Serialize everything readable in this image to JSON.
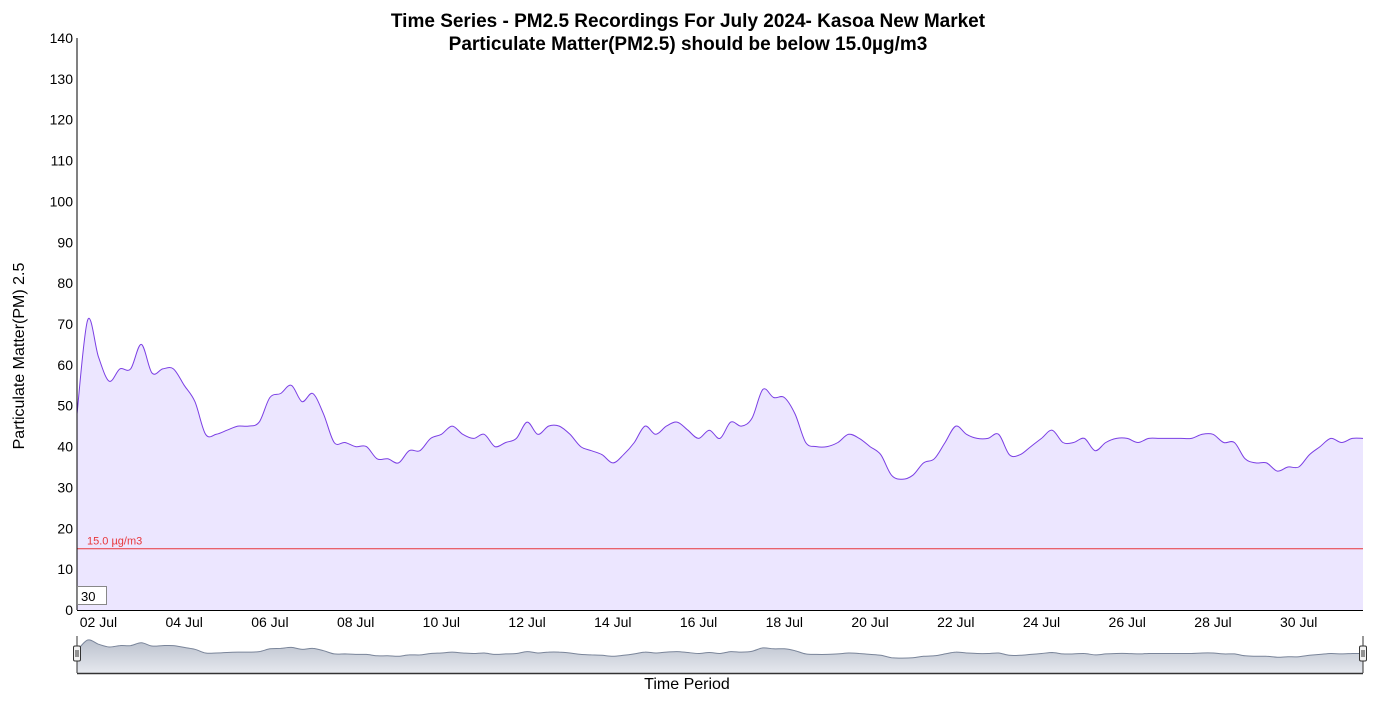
{
  "colors": {
    "line": "#7b3fe4",
    "fill": "#ece6ff",
    "threshold": "#e8363a",
    "subtitle": "#ff0000",
    "navigator_line": "#7a859a",
    "navigator_fill": "#b3bac8"
  },
  "roller": {
    "value": "30"
  },
  "chart_data": {
    "type": "area",
    "title": "Time Series - PM2.5 Recordings For July 2024- Kasoa New Market",
    "subtitle": "Particulate Matter(PM2.5) should be below 15.0µg/m3",
    "xlabel": "Time Period",
    "ylabel": "Particulate Matter(PM) 2.5",
    "ylim": [
      0,
      140
    ],
    "yticks": [
      0,
      10,
      20,
      30,
      40,
      50,
      60,
      70,
      80,
      90,
      100,
      110,
      120,
      130,
      140
    ],
    "xlim": [
      "2024-07-01T12:00",
      "2024-07-31T12:00"
    ],
    "xticks": [
      "02 Jul",
      "04 Jul",
      "06 Jul",
      "08 Jul",
      "10 Jul",
      "12 Jul",
      "14 Jul",
      "16 Jul",
      "18 Jul",
      "20 Jul",
      "22 Jul",
      "24 Jul",
      "26 Jul",
      "28 Jul",
      "30 Jul"
    ],
    "grid": false,
    "legend": "none",
    "threshold": {
      "value": 15.0,
      "label": "15.0 µg/m3"
    },
    "x": [
      "2024-07-01T12:00",
      "2024-07-01T18:00",
      "2024-07-02T00:00",
      "2024-07-02T06:00",
      "2024-07-02T12:00",
      "2024-07-02T18:00",
      "2024-07-03T00:00",
      "2024-07-03T06:00",
      "2024-07-03T12:00",
      "2024-07-03T18:00",
      "2024-07-04T00:00",
      "2024-07-04T06:00",
      "2024-07-04T12:00",
      "2024-07-04T18:00",
      "2024-07-05T00:00",
      "2024-07-05T06:00",
      "2024-07-05T12:00",
      "2024-07-05T18:00",
      "2024-07-06T00:00",
      "2024-07-06T06:00",
      "2024-07-06T12:00",
      "2024-07-06T18:00",
      "2024-07-07T00:00",
      "2024-07-07T06:00",
      "2024-07-07T12:00",
      "2024-07-07T18:00",
      "2024-07-08T00:00",
      "2024-07-08T06:00",
      "2024-07-08T12:00",
      "2024-07-08T18:00",
      "2024-07-09T00:00",
      "2024-07-09T06:00",
      "2024-07-09T12:00",
      "2024-07-09T18:00",
      "2024-07-10T00:00",
      "2024-07-10T06:00",
      "2024-07-10T12:00",
      "2024-07-10T18:00",
      "2024-07-11T00:00",
      "2024-07-11T06:00",
      "2024-07-11T12:00",
      "2024-07-11T18:00",
      "2024-07-12T00:00",
      "2024-07-12T06:00",
      "2024-07-12T12:00",
      "2024-07-12T18:00",
      "2024-07-13T00:00",
      "2024-07-13T06:00",
      "2024-07-13T12:00",
      "2024-07-13T18:00",
      "2024-07-14T00:00",
      "2024-07-14T06:00",
      "2024-07-14T12:00",
      "2024-07-14T18:00",
      "2024-07-15T00:00",
      "2024-07-15T06:00",
      "2024-07-15T12:00",
      "2024-07-15T18:00",
      "2024-07-16T00:00",
      "2024-07-16T06:00",
      "2024-07-16T12:00",
      "2024-07-16T18:00",
      "2024-07-17T00:00",
      "2024-07-17T06:00",
      "2024-07-17T12:00",
      "2024-07-17T18:00",
      "2024-07-18T00:00",
      "2024-07-18T06:00",
      "2024-07-18T12:00",
      "2024-07-18T18:00",
      "2024-07-19T00:00",
      "2024-07-19T06:00",
      "2024-07-19T12:00",
      "2024-07-19T18:00",
      "2024-07-20T00:00",
      "2024-07-20T06:00",
      "2024-07-20T12:00",
      "2024-07-20T18:00",
      "2024-07-21T00:00",
      "2024-07-21T06:00",
      "2024-07-21T12:00",
      "2024-07-21T18:00",
      "2024-07-22T00:00",
      "2024-07-22T06:00",
      "2024-07-22T12:00",
      "2024-07-22T18:00",
      "2024-07-23T00:00",
      "2024-07-23T06:00",
      "2024-07-23T12:00",
      "2024-07-23T18:00",
      "2024-07-24T00:00",
      "2024-07-24T06:00",
      "2024-07-24T12:00",
      "2024-07-24T18:00",
      "2024-07-25T00:00",
      "2024-07-25T06:00",
      "2024-07-25T12:00",
      "2024-07-25T18:00",
      "2024-07-26T00:00",
      "2024-07-26T06:00",
      "2024-07-26T12:00",
      "2024-07-26T18:00",
      "2024-07-27T00:00",
      "2024-07-27T06:00",
      "2024-07-27T12:00",
      "2024-07-27T18:00",
      "2024-07-28T00:00",
      "2024-07-28T06:00",
      "2024-07-28T12:00",
      "2024-07-28T18:00",
      "2024-07-29T00:00",
      "2024-07-29T06:00",
      "2024-07-29T12:00",
      "2024-07-29T18:00",
      "2024-07-30T00:00",
      "2024-07-30T06:00",
      "2024-07-30T12:00",
      "2024-07-30T18:00",
      "2024-07-31T00:00",
      "2024-07-31T06:00",
      "2024-07-31T12:00"
    ],
    "series": [
      {
        "values": [
          48,
          71,
          62,
          56,
          59,
          59,
          65,
          58,
          59,
          59,
          55,
          51,
          43,
          43,
          44,
          45,
          45,
          46,
          52,
          53,
          55,
          51,
          53,
          48,
          41,
          41,
          40,
          40,
          37,
          37,
          36,
          39,
          39,
          42,
          43,
          45,
          43,
          42,
          43,
          40,
          41,
          42,
          46,
          43,
          45,
          45,
          43,
          40,
          39,
          38,
          36,
          38,
          41,
          45,
          43,
          45,
          46,
          44,
          42,
          44,
          42,
          46,
          45,
          47,
          54,
          52,
          52,
          48,
          41,
          40,
          40,
          41,
          43,
          42,
          40,
          38,
          33,
          32,
          33,
          36,
          37,
          41,
          45,
          43,
          42,
          42,
          43,
          38,
          38,
          40,
          42,
          44,
          41,
          41,
          42,
          39,
          41,
          42,
          42,
          41,
          42,
          42,
          42,
          42,
          42,
          43,
          43,
          41,
          41,
          37,
          36,
          36,
          34,
          35,
          35,
          38,
          40,
          42,
          41,
          42,
          42
        ]
      }
    ]
  }
}
